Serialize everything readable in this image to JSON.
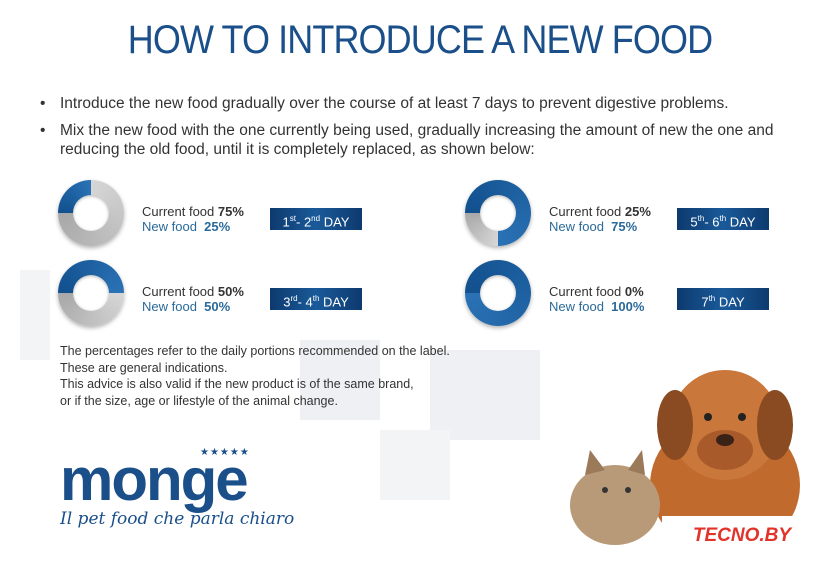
{
  "title": "HOW TO INTRODUCE A NEW FOOD",
  "bullets": [
    "Introduce the new food gradually over the course of at least 7 days to prevent digestive problems.",
    "Mix the new food with the one currently being used, gradually increasing the amount of new the one and reducing the old food, until it is completely replaced, as shown below:"
  ],
  "steps": [
    {
      "current_label": "Current food",
      "current": "75%",
      "new_label": "New food",
      "new": "25%",
      "new_fraction": 0.25,
      "day": "1st- 2nd DAY",
      "d1": "1",
      "s1": "st",
      "d2": "- 2",
      "s2": "nd",
      "dayword": " DAY"
    },
    {
      "current_label": "Current food",
      "current": "50%",
      "new_label": "New food",
      "new": "50%",
      "new_fraction": 0.5,
      "d1": "3",
      "s1": "rd",
      "d2": "- 4",
      "s2": "th",
      "dayword": " DAY"
    },
    {
      "current_label": "Current food",
      "current": "25%",
      "new_label": "New food",
      "new": "75%",
      "new_fraction": 0.75,
      "d1": "5",
      "s1": "th",
      "d2": "- 6",
      "s2": "th",
      "dayword": " DAY"
    },
    {
      "current_label": "Current food",
      "current": "0%",
      "new_label": "New food",
      "new": "100%",
      "new_fraction": 1,
      "d1": "7",
      "s1": "th",
      "d2": "",
      "s2": "",
      "dayword": " DAY"
    }
  ],
  "notes": [
    "The percentages refer to the daily portions recommended on the label.",
    "These are general indications.",
    "This advice is also valid if the new product is of the same brand,",
    "or if the size, age or lifestyle of the animal change."
  ],
  "logo": {
    "word": "monge",
    "tagline": "Il pet food che parla chiaro"
  },
  "watermark": "TECNO.BY",
  "colors": {
    "blue": "#1a4f8a",
    "gray": "#c8c8c8",
    "watermark": "#e2332b"
  }
}
